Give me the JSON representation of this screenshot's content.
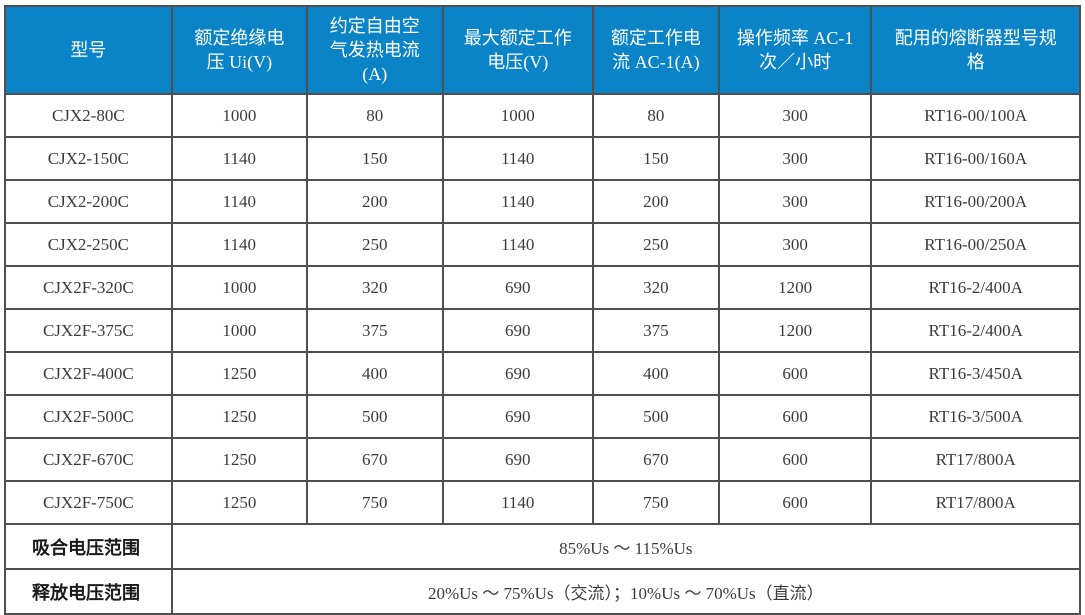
{
  "table": {
    "name": "contactor-spec-table",
    "columns": [
      {
        "label": "型号"
      },
      {
        "label": "额定绝缘电压 Ui(V)"
      },
      {
        "label": "约定自由空气发热电流(A)"
      },
      {
        "label": "最大额定工作电压(V)"
      },
      {
        "label": "额定工作电流 AC-1(A)"
      },
      {
        "label": "操作频率 AC-1 次／小时"
      },
      {
        "label": "配用的熔断器型号规格"
      }
    ],
    "rows": [
      [
        "CJX2-80C",
        "1000",
        "80",
        "1000",
        "80",
        "300",
        "RT16-00/100A"
      ],
      [
        "CJX2-150C",
        "1140",
        "150",
        "1140",
        "150",
        "300",
        "RT16-00/160A"
      ],
      [
        "CJX2-200C",
        "1140",
        "200",
        "1140",
        "200",
        "300",
        "RT16-00/200A"
      ],
      [
        "CJX2-250C",
        "1140",
        "250",
        "1140",
        "250",
        "300",
        "RT16-00/250A"
      ],
      [
        "CJX2F-320C",
        "1000",
        "320",
        "690",
        "320",
        "1200",
        "RT16-2/400A"
      ],
      [
        "CJX2F-375C",
        "1000",
        "375",
        "690",
        "375",
        "1200",
        "RT16-2/400A"
      ],
      [
        "CJX2F-400C",
        "1250",
        "400",
        "690",
        "400",
        "600",
        "RT16-3/450A"
      ],
      [
        "CJX2F-500C",
        "1250",
        "500",
        "690",
        "500",
        "600",
        "RT16-3/500A"
      ],
      [
        "CJX2F-670C",
        "1250",
        "670",
        "690",
        "670",
        "600",
        "RT17/800A"
      ],
      [
        "CJX2F-750C",
        "1250",
        "750",
        "1140",
        "750",
        "600",
        "RT17/800A"
      ]
    ],
    "footer_rows": [
      {
        "label": "吸合电压范围",
        "value": "85%Us ～ 115%Us"
      },
      {
        "label": "释放电压范围",
        "value": "20%Us ～ 75%Us（交流）；10%Us ～ 70%Us（直流）"
      }
    ],
    "colors": {
      "header_bg": "#0a84c7",
      "header_text": "#ffffff",
      "border": "#4f4f4f",
      "body_text": "#3b3b3b"
    }
  }
}
